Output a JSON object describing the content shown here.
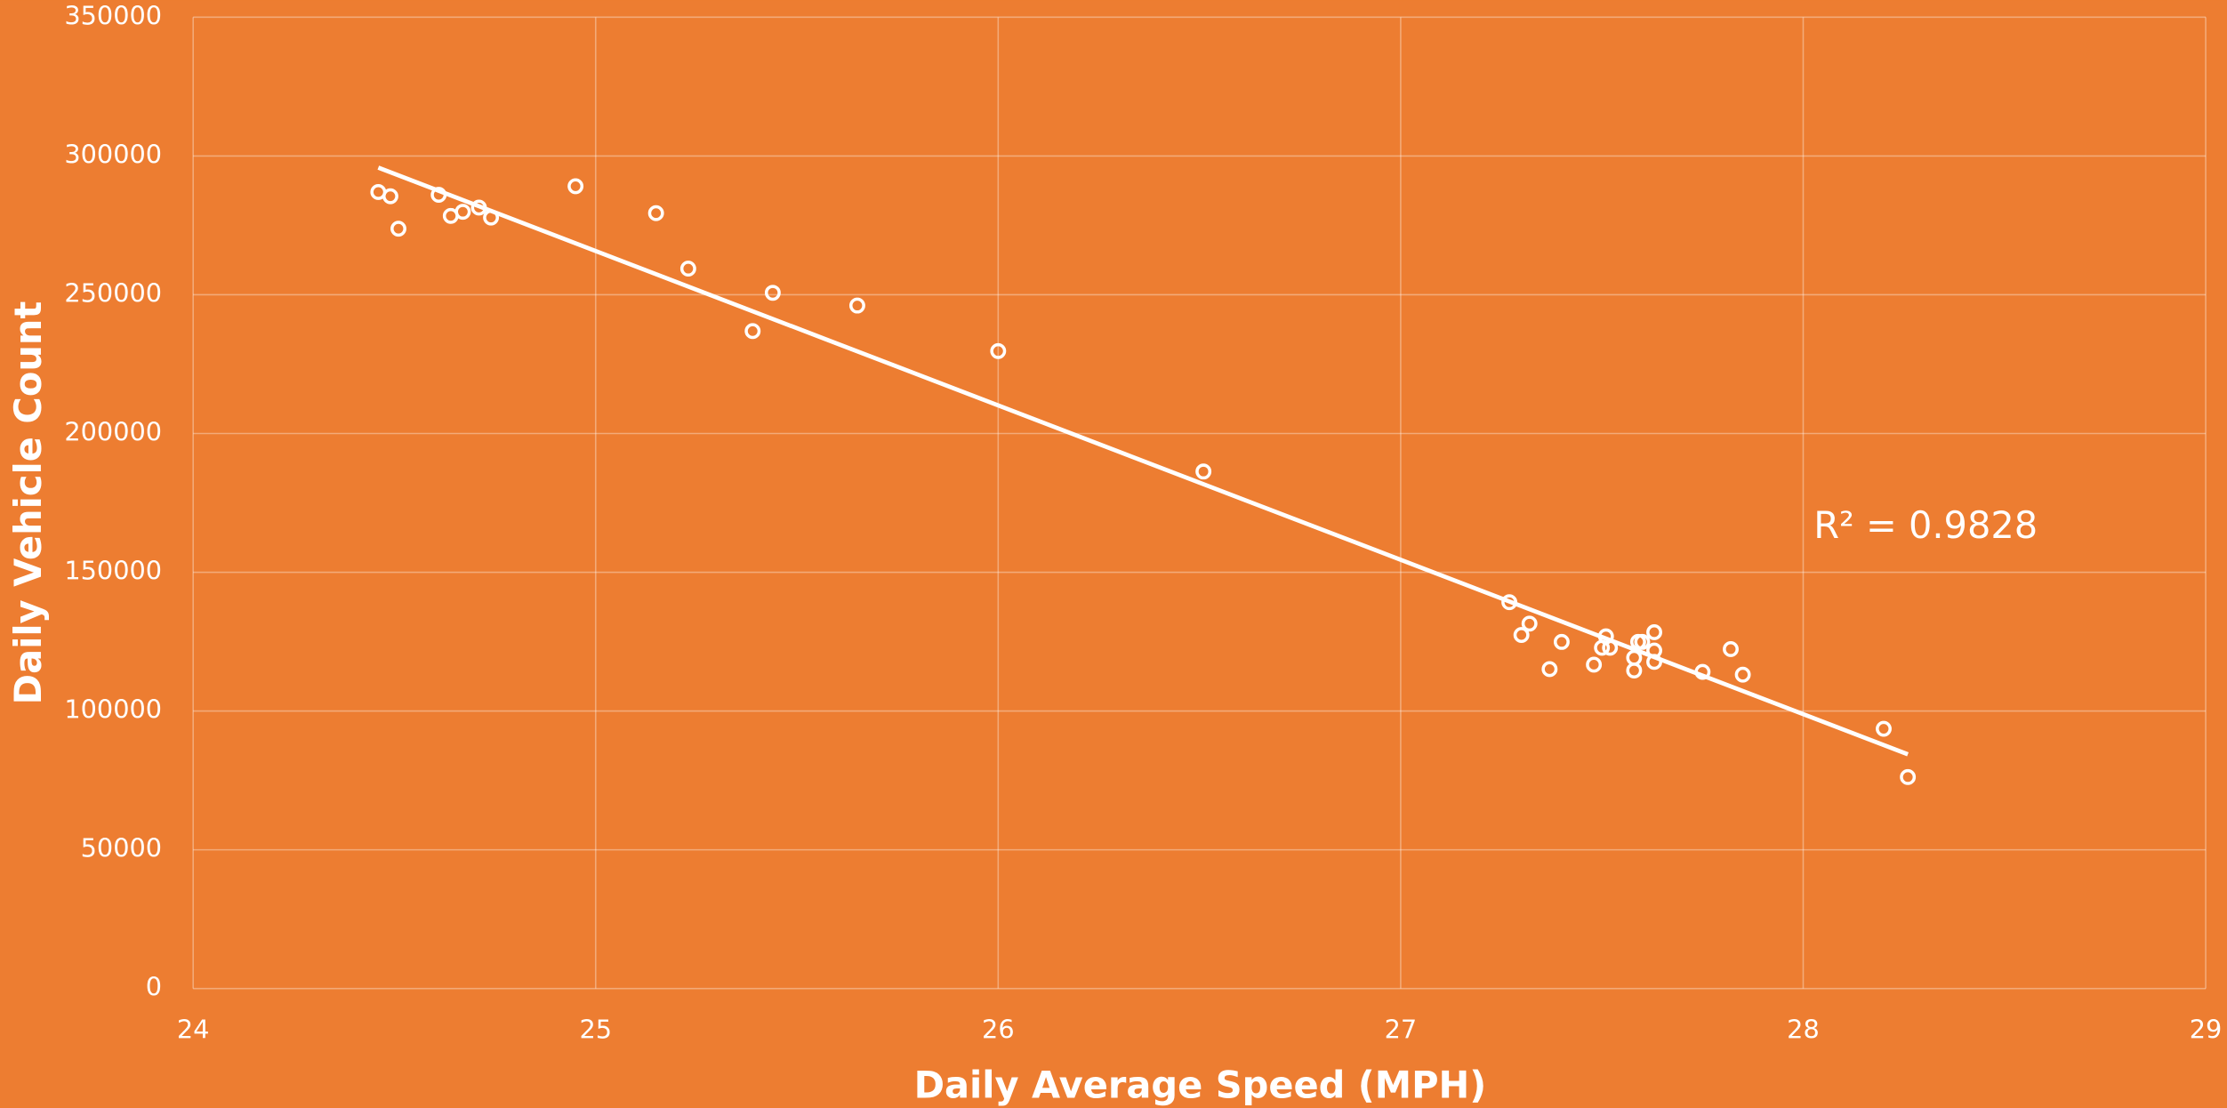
{
  "chart_data": {
    "type": "scatter",
    "x_label": "Daily Average Speed (MPH)",
    "y_label": "Daily Vehicle Count",
    "annotation": "R² = 0.9828",
    "color": "#ffffff",
    "grid": true,
    "xlim": [
      24,
      29
    ],
    "xticks": [
      24,
      25,
      26,
      27,
      28,
      29
    ],
    "ylim": [
      0,
      350000
    ],
    "yticks": [
      0,
      50000,
      100000,
      150000,
      200000,
      250000,
      300000,
      350000
    ],
    "x": [
      24.46,
      24.49,
      24.51,
      24.61,
      24.64,
      24.67,
      24.71,
      24.74,
      24.95,
      25.15,
      25.23,
      25.39,
      25.44,
      25.65,
      26.0,
      26.51,
      27.27,
      27.3,
      27.32,
      27.37,
      27.4,
      27.48,
      27.51,
      27.5,
      27.52,
      27.58,
      27.58,
      27.59,
      27.6,
      27.63,
      27.63,
      27.63,
      27.75,
      27.82,
      27.85,
      28.2,
      28.26
    ],
    "values": [
      287000,
      285500,
      273800,
      286000,
      278400,
      279900,
      281400,
      277800,
      289100,
      279400,
      259400,
      236900,
      250700,
      246100,
      229700,
      186300,
      139200,
      127400,
      131500,
      115100,
      124900,
      116700,
      126900,
      122800,
      122800,
      114600,
      119200,
      124900,
      124900,
      128400,
      121800,
      117700,
      114100,
      122300,
      113100,
      93600,
      76200
    ],
    "trendline": {
      "x": [
        24.46,
        28.26
      ],
      "values": [
        295800,
        84400
      ]
    }
  }
}
